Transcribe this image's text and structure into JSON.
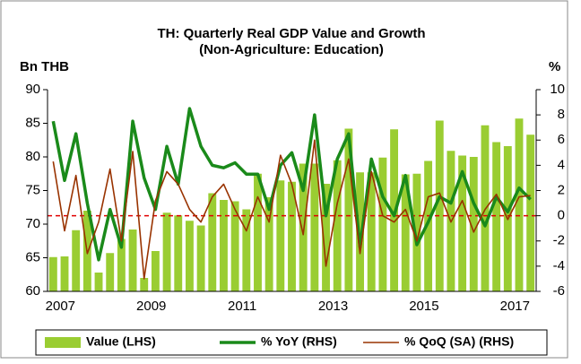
{
  "chart_data": {
    "type": "bar-line",
    "title": "TH: Quarterly Real GDP Value and Growth",
    "subtitle": "(Non-Agriculture: Education)",
    "ylabel": "Bn THB",
    "y2label": "%",
    "categories": [
      "2007",
      null,
      null,
      null,
      null,
      null,
      null,
      null,
      "2009",
      null,
      null,
      null,
      null,
      null,
      null,
      null,
      "2011",
      null,
      null,
      null,
      null,
      null,
      null,
      null,
      "2013",
      null,
      null,
      null,
      null,
      null,
      null,
      null,
      "2015",
      null,
      null,
      null,
      null,
      null,
      null,
      null,
      "2017",
      null,
      null
    ],
    "series": [
      {
        "name": "Value (LHS)",
        "type": "bar",
        "axis": "y",
        "color": "#9acd32",
        "values": [
          65.1,
          65.2,
          69.1,
          72,
          62.8,
          65.7,
          67.8,
          69.2,
          62,
          66,
          71.7,
          71.3,
          70.5,
          69.8,
          74.6,
          73.6,
          73.4,
          72.2,
          77.5,
          74,
          76.5,
          76.3,
          79,
          79,
          76,
          79.5,
          84.2,
          77.7,
          77.7,
          79.9,
          84.1,
          77.4,
          77.5,
          79.4,
          85.4,
          80.9,
          80.2,
          80,
          84.7,
          82.2,
          81.6,
          85.7,
          83.3
        ]
      },
      {
        "name": "% YoY (RHS)",
        "type": "line",
        "axis": "y2",
        "color": "#1a8a1a",
        "values": [
          7.5,
          2.8,
          6.5,
          1,
          -3.5,
          0.5,
          -2.5,
          7.5,
          3,
          0.5,
          5.5,
          2.5,
          8.5,
          5.5,
          4,
          3.8,
          4.2,
          3.3,
          3.3,
          0.5,
          4,
          5,
          2,
          8,
          0,
          4.5,
          6.5,
          -2.5,
          4.5,
          1.5,
          0,
          3.2,
          -2.3,
          -0.5,
          1.5,
          1,
          3.5,
          1,
          -0.8,
          1.5,
          0.3,
          2.2,
          1.3
        ]
      },
      {
        "name": "% QoQ (SA) (RHS)",
        "type": "line",
        "axis": "y2",
        "color": "#993300",
        "values": [
          4.3,
          -1.2,
          3.2,
          -3,
          -0.5,
          3.7,
          -2,
          5.1,
          -5,
          1.2,
          3.5,
          2.5,
          0.5,
          -0.5,
          1.5,
          2.5,
          0.5,
          -1.2,
          1.5,
          -0.5,
          4.8,
          2.5,
          -1.5,
          6,
          -4,
          1,
          4.5,
          -3,
          3.5,
          0,
          -0.5,
          0.5,
          -2,
          1.5,
          1.8,
          -0.5,
          1.2,
          -1.3,
          0.5,
          1.7,
          -0.3,
          1.5,
          1.6
        ]
      }
    ],
    "ylim": [
      60,
      90
    ],
    "yticks": [
      60,
      65,
      70,
      75,
      80,
      85,
      90
    ],
    "y2lim": [
      -6,
      10
    ],
    "y2ticks": [
      -6,
      -4,
      -2,
      0,
      2,
      4,
      6,
      8,
      10
    ],
    "zero_line_color": "#e00000",
    "legend": "bottom"
  }
}
